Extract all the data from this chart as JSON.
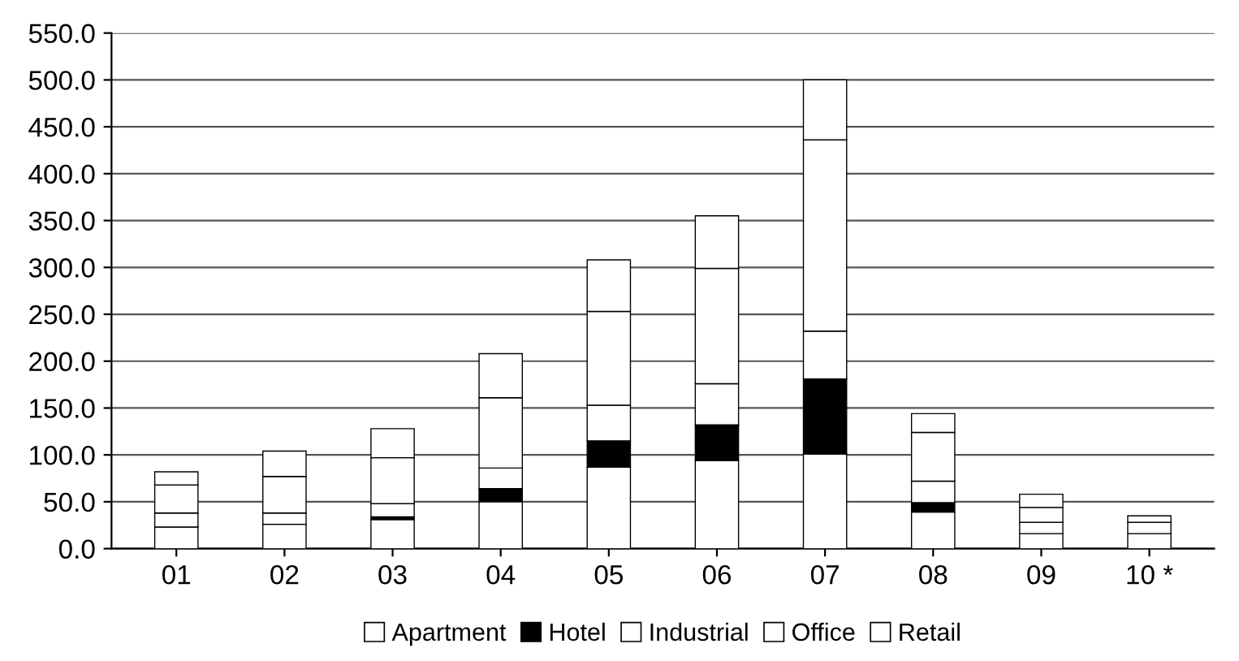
{
  "chart_data": {
    "type": "bar",
    "stacked": true,
    "categories": [
      "01",
      "02",
      "03",
      "04",
      "05",
      "06",
      "07",
      "08",
      "09",
      "10 *"
    ],
    "series": [
      {
        "name": "Apartment",
        "color": "#ffffff",
        "values": [
          23,
          26,
          31,
          50,
          87,
          94,
          101,
          39,
          16,
          16
        ]
      },
      {
        "name": "Hotel",
        "color": "#000000",
        "values": [
          0,
          0,
          3,
          14,
          28,
          38,
          80,
          10,
          0,
          0
        ]
      },
      {
        "name": "Industrial",
        "color": "#ffffff",
        "values": [
          15,
          12,
          14,
          22,
          38,
          44,
          51,
          23,
          12,
          12
        ]
      },
      {
        "name": "Office",
        "color": "#ffffff",
        "values": [
          30,
          39,
          49,
          75,
          100,
          123,
          204,
          52,
          16,
          7
        ]
      },
      {
        "name": "Retail",
        "color": "#ffffff",
        "values": [
          14,
          27,
          31,
          47,
          55,
          56,
          64,
          20,
          14,
          0
        ]
      }
    ],
    "ylim": [
      0,
      550
    ],
    "yticks": [
      {
        "value": 0,
        "label": "0.0"
      },
      {
        "value": 50,
        "label": "50.0"
      },
      {
        "value": 100,
        "label": "100.0"
      },
      {
        "value": 150,
        "label": "150.0"
      },
      {
        "value": 200,
        "label": "200.0"
      },
      {
        "value": 250,
        "label": "250.0"
      },
      {
        "value": 300,
        "label": "300.0"
      },
      {
        "value": 350,
        "label": "350.0"
      },
      {
        "value": 400,
        "label": "400.0"
      },
      {
        "value": 450,
        "label": "450.0"
      },
      {
        "value": 500,
        "label": "500.0"
      },
      {
        "value": 550,
        "label": "550.0"
      }
    ],
    "grid": "y",
    "legend": "bottom"
  }
}
